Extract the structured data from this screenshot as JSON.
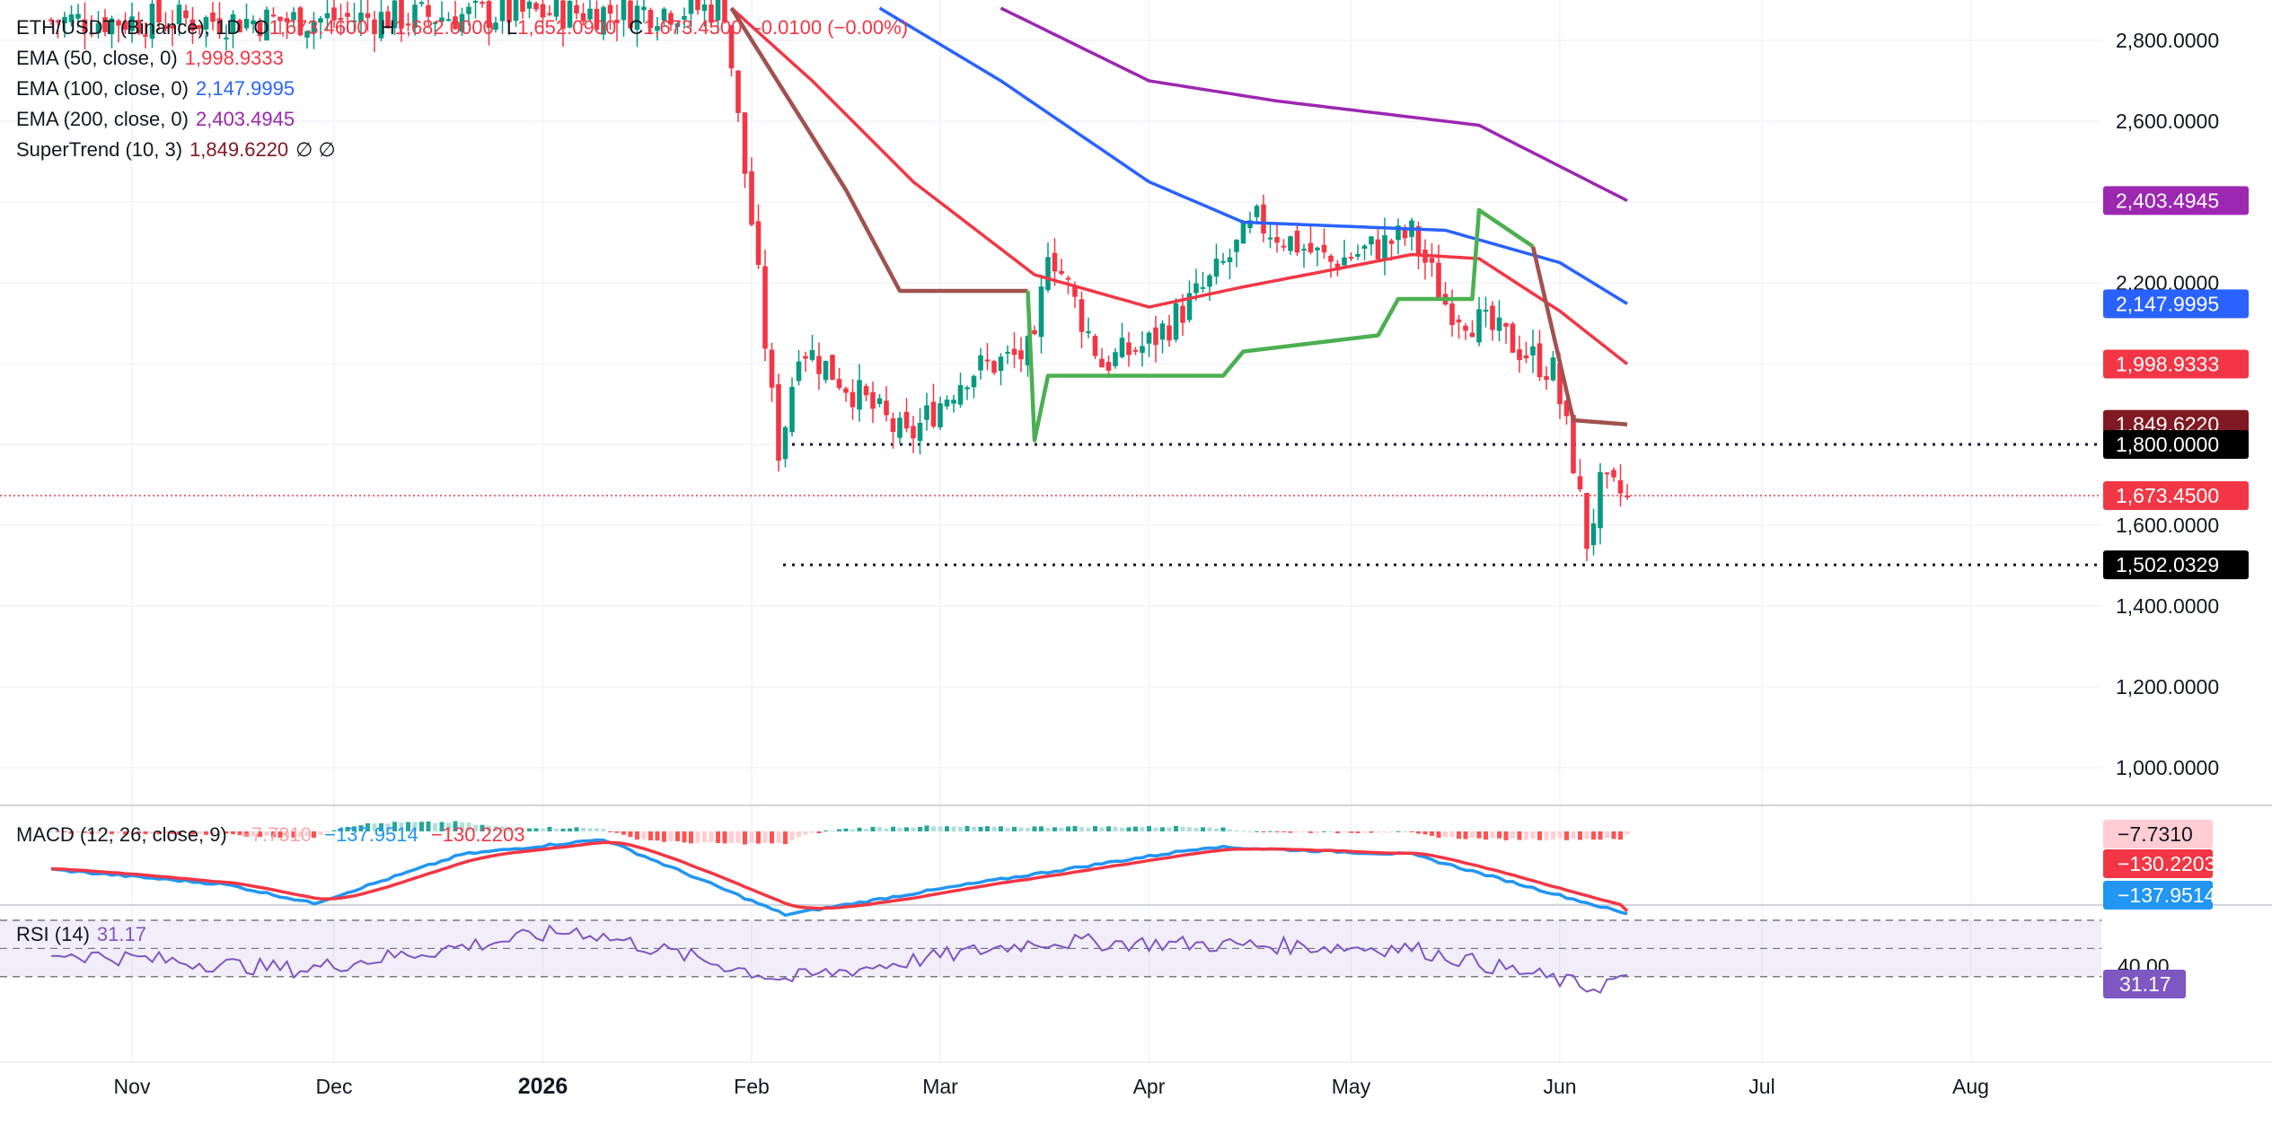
{
  "header": {
    "symbol": "ETH/USDT (Binance), 1D",
    "ohlc": {
      "open_label": "O",
      "open": "1,673.4600",
      "high_label": "H",
      "high": "1,682.0000",
      "low_label": "L",
      "low": "1,652.0900",
      "close_label": "C",
      "close": "1,673.4500",
      "change": "-0.0100 (−0.00%)"
    }
  },
  "indicators": {
    "ema50": {
      "label": "EMA (50, close, 0)",
      "value": "1,998.9333",
      "color": "#f23645"
    },
    "ema100": {
      "label": "EMA (100, close, 0)",
      "value": "2,147.9995",
      "color": "#2962ff"
    },
    "ema200": {
      "label": "EMA (200, close, 0)",
      "value": "2,403.4945",
      "color": "#9c27b0"
    },
    "supertrend": {
      "label": "SuperTrend (10, 3)",
      "value": "1,849.6220",
      "empty": "∅ ∅",
      "color": "#801922"
    },
    "macd": {
      "label": "MACD (12, 26, close, 9)",
      "hist": "−7.7310",
      "macd": "−137.9514",
      "signal": "−130.2203"
    },
    "rsi": {
      "label": "RSI (14)",
      "value": "31.17",
      "color": "#7e57c2"
    }
  },
  "price_axis": {
    "ticks": [
      "2,800.0000",
      "2,600.0000",
      "2,200.0000",
      "1,600.0000",
      "1,400.0000",
      "1,200.0000",
      "1,000.0000"
    ],
    "badges": {
      "ema200": "2,403.4945",
      "ema100": "2,147.9995",
      "ema50": "1,998.9333",
      "supertrend": "1,849.6220",
      "level_high": "1,800.0000",
      "last": "1,673.4500",
      "level_low": "1,502.0329"
    }
  },
  "macd_axis": {
    "hist": "−7.7310",
    "signal": "−130.2203",
    "macd": "−137.9514"
  },
  "rsi_axis": {
    "tick": "40.00",
    "value": "31.17"
  },
  "time_axis": [
    "Nov",
    "Dec",
    "2026",
    "Feb",
    "Mar",
    "Apr",
    "May",
    "Jun",
    "Jul",
    "Aug"
  ],
  "chart_data": {
    "type": "candlestick",
    "title": "ETH/USDT (Binance), 1D",
    "x_range": [
      "2025-10-20",
      "2026-08-30"
    ],
    "ylim": [
      880,
      2890
    ],
    "horizontal_levels": [
      1800.0,
      1502.0329
    ],
    "last_price": 1673.45,
    "candles_anchor_close": [
      {
        "date": "2025-11-24",
        "close": 2850
      },
      {
        "date": "2026-01-28",
        "close": 2880
      },
      {
        "date": "2026-01-30",
        "close": 2600
      },
      {
        "date": "2026-02-01",
        "close": 2350
      },
      {
        "date": "2026-02-05",
        "close": 1760
      },
      {
        "date": "2026-02-08",
        "close": 2050
      },
      {
        "date": "2026-02-15",
        "close": 1950
      },
      {
        "date": "2026-02-24",
        "close": 1810
      },
      {
        "date": "2026-03-05",
        "close": 1980
      },
      {
        "date": "2026-03-15",
        "close": 2030
      },
      {
        "date": "2026-03-17",
        "close": 2300
      },
      {
        "date": "2026-03-25",
        "close": 2000
      },
      {
        "date": "2026-04-01",
        "close": 2050
      },
      {
        "date": "2026-04-10",
        "close": 2200
      },
      {
        "date": "2026-04-17",
        "close": 2350
      },
      {
        "date": "2026-04-28",
        "close": 2250
      },
      {
        "date": "2026-05-10",
        "close": 2320
      },
      {
        "date": "2026-05-15",
        "close": 2150
      },
      {
        "date": "2026-05-25",
        "close": 2050
      },
      {
        "date": "2026-05-31",
        "close": 1980
      },
      {
        "date": "2026-06-03",
        "close": 1760
      },
      {
        "date": "2026-06-05",
        "close": 1560
      },
      {
        "date": "2026-06-07",
        "close": 1690
      },
      {
        "date": "2026-06-11",
        "close": 1673.45
      }
    ],
    "series": [
      {
        "name": "EMA (50, close, 0)",
        "values": [
          {
            "date": "2026-01-29",
            "value": 2880
          },
          {
            "date": "2026-02-10",
            "value": 2700
          },
          {
            "date": "2026-02-25",
            "value": 2450
          },
          {
            "date": "2026-03-15",
            "value": 2220
          },
          {
            "date": "2026-04-01",
            "value": 2140
          },
          {
            "date": "2026-04-15",
            "value": 2190
          },
          {
            "date": "2026-05-10",
            "value": 2270
          },
          {
            "date": "2026-05-20",
            "value": 2260
          },
          {
            "date": "2026-06-01",
            "value": 2130
          },
          {
            "date": "2026-06-11",
            "value": 1998.93
          }
        ]
      },
      {
        "name": "EMA (100, close, 0)",
        "values": [
          {
            "date": "2026-02-20",
            "value": 2880
          },
          {
            "date": "2026-03-10",
            "value": 2700
          },
          {
            "date": "2026-04-01",
            "value": 2450
          },
          {
            "date": "2026-04-15",
            "value": 2350
          },
          {
            "date": "2026-05-15",
            "value": 2330
          },
          {
            "date": "2026-06-01",
            "value": 2250
          },
          {
            "date": "2026-06-11",
            "value": 2148.0
          }
        ]
      },
      {
        "name": "EMA (200, close, 0)",
        "values": [
          {
            "date": "2026-03-10",
            "value": 2880
          },
          {
            "date": "2026-04-01",
            "value": 2700
          },
          {
            "date": "2026-04-20",
            "value": 2650
          },
          {
            "date": "2026-05-20",
            "value": 2590
          },
          {
            "date": "2026-06-11",
            "value": 2403.49
          }
        ]
      },
      {
        "name": "SuperTrend (10, 3)",
        "values": [
          {
            "date": "2026-01-29",
            "value": 2880
          },
          {
            "date": "2026-02-15",
            "value": 2430
          },
          {
            "date": "2026-02-23",
            "value": 2180
          },
          {
            "date": "2026-03-14",
            "value": 2180
          },
          {
            "date": "2026-03-15",
            "value": 1810
          },
          {
            "date": "2026-03-17",
            "value": 1970
          },
          {
            "date": "2026-04-12",
            "value": 1970
          },
          {
            "date": "2026-04-15",
            "value": 2030
          },
          {
            "date": "2026-05-05",
            "value": 2070
          },
          {
            "date": "2026-05-08",
            "value": 2160
          },
          {
            "date": "2026-05-19",
            "value": 2160
          },
          {
            "date": "2026-05-20",
            "value": 2380
          },
          {
            "date": "2026-05-28",
            "value": 2290
          },
          {
            "date": "2026-06-03",
            "value": 1860
          },
          {
            "date": "2026-06-11",
            "value": 1849.62
          }
        ]
      },
      {
        "name": "MACD (12, 26, close, 9)",
        "values": [
          {
            "date": "2025-10-20",
            "value": -20
          },
          {
            "date": "2025-11-15",
            "value": -60
          },
          {
            "date": "2025-11-28",
            "value": -110
          },
          {
            "date": "2025-12-20",
            "value": 20
          },
          {
            "date": "2026-01-10",
            "value": 60
          },
          {
            "date": "2026-02-06",
            "value": -140
          },
          {
            "date": "2026-03-05",
            "value": -60
          },
          {
            "date": "2026-04-10",
            "value": 40
          },
          {
            "date": "2026-05-10",
            "value": 20
          },
          {
            "date": "2026-06-11",
            "value": -137.95
          }
        ]
      },
      {
        "name": "RSI (14)",
        "values": [
          {
            "date": "2025-10-20",
            "value": 47
          },
          {
            "date": "2025-11-26",
            "value": 35
          },
          {
            "date": "2026-01-06",
            "value": 63
          },
          {
            "date": "2026-02-06",
            "value": 28
          },
          {
            "date": "2026-03-16",
            "value": 55
          },
          {
            "date": "2026-04-20",
            "value": 52
          },
          {
            "date": "2026-05-10",
            "value": 50
          },
          {
            "date": "2026-06-06",
            "value": 22
          },
          {
            "date": "2026-06-11",
            "value": 31.17
          }
        ]
      }
    ]
  }
}
